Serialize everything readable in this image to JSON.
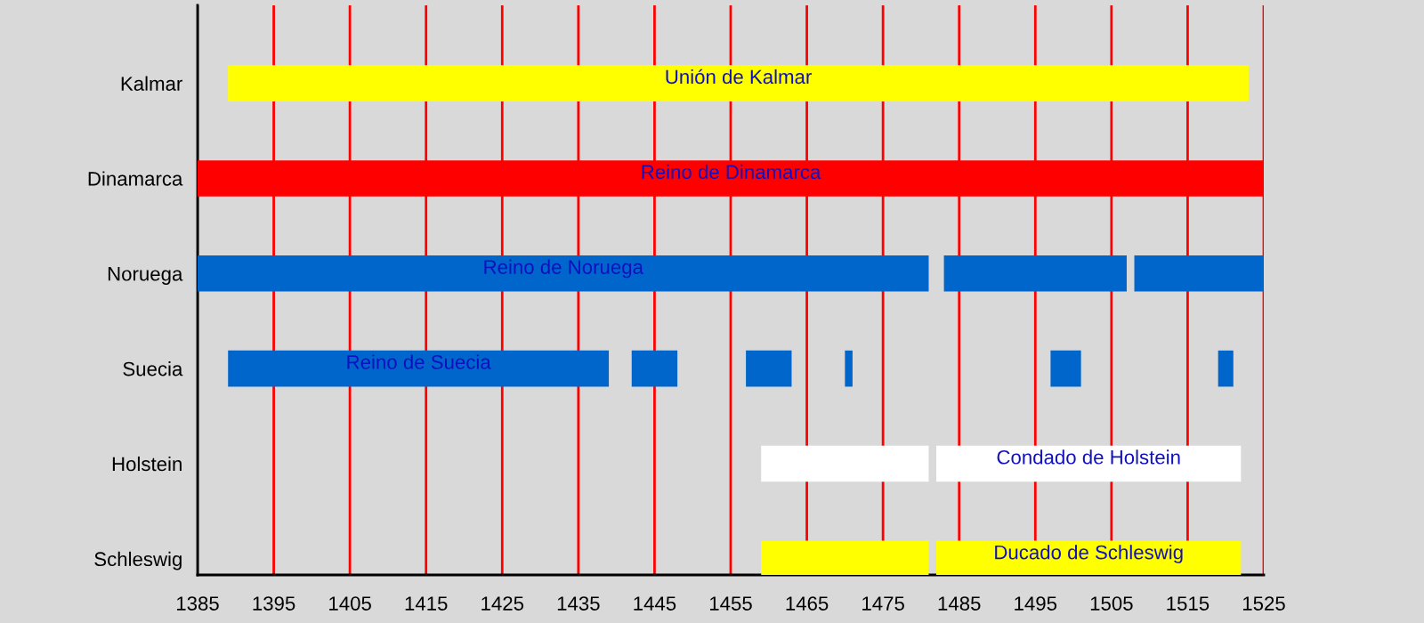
{
  "chart_data": {
    "type": "bar",
    "orientation": "horizontal",
    "categories": [
      "Kalmar",
      "Dinamarca",
      "Noruega",
      "Suecia",
      "Holstein",
      "Schleswig"
    ],
    "series": [
      {
        "values": [
          134,
          140,
          96,
          50,
          22,
          22
        ],
        "base": [
          1389,
          1385,
          1385,
          1389,
          1459,
          1459
        ],
        "colors": [
          "#ffff00",
          "#ff0000",
          "#0066cc",
          "#0066cc",
          "#ffffff",
          "#ffff00"
        ],
        "value_labels": [
          "Unión de Kalmar",
          "Reino de Dinamarca",
          "Reino de Noruega",
          "Reino de Suecia",
          null,
          null
        ]
      },
      {
        "values": [
          null,
          null,
          24,
          6,
          40,
          40
        ],
        "base": [
          null,
          null,
          1483,
          1442,
          1482,
          1482
        ],
        "colors": [
          null,
          null,
          "#0066cc",
          "#0066cc",
          "#ffffff",
          "#ffff00"
        ],
        "value_labels": [
          null,
          null,
          null,
          null,
          "Condado de Holstein",
          "Ducado de Schleswig"
        ]
      },
      {
        "values": [
          null,
          null,
          17,
          6,
          null,
          null
        ],
        "base": [
          null,
          null,
          1508,
          1457,
          null,
          null
        ],
        "colors": [
          null,
          null,
          "#0066cc",
          "#0066cc",
          null,
          null
        ]
      },
      {
        "values": [
          null,
          null,
          null,
          1,
          null,
          null
        ],
        "base": [
          null,
          null,
          null,
          1470,
          null,
          null
        ],
        "colors": [
          null,
          null,
          null,
          "#0066cc",
          null,
          null
        ]
      },
      {
        "values": [
          null,
          null,
          null,
          4,
          null,
          null
        ],
        "base": [
          null,
          null,
          null,
          1497,
          null,
          null
        ],
        "colors": [
          null,
          null,
          null,
          "#0066cc",
          null,
          null
        ]
      },
      {
        "values": [
          null,
          null,
          null,
          2,
          null,
          null
        ],
        "base": [
          null,
          null,
          null,
          1519,
          null,
          null
        ],
        "colors": [
          null,
          null,
          null,
          "#0066cc",
          null,
          null
        ]
      }
    ],
    "xlim": [
      1385,
      1525
    ],
    "xticks": [
      1385,
      1395,
      1405,
      1415,
      1425,
      1435,
      1445,
      1455,
      1465,
      1475,
      1485,
      1495,
      1505,
      1515,
      1525
    ],
    "grid": "x"
  }
}
